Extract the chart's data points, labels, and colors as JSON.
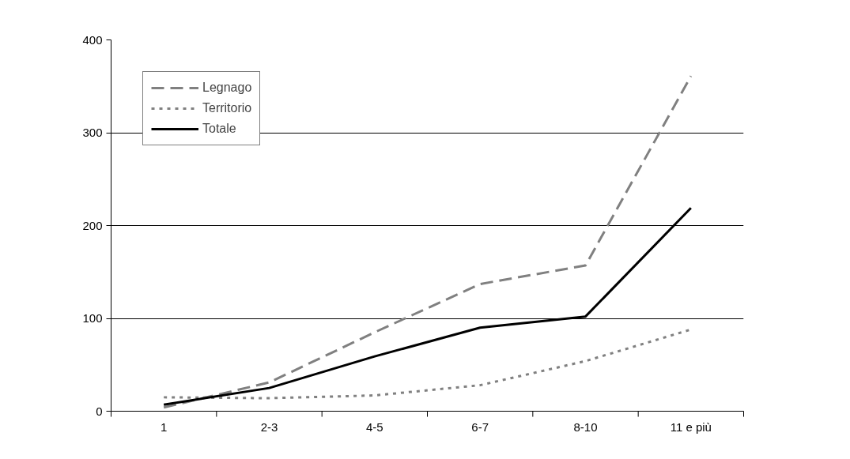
{
  "chart_data": {
    "type": "line",
    "categories": [
      "1",
      "2-3",
      "4-5",
      "6-7",
      "8-10",
      "11 e più"
    ],
    "series": [
      {
        "name": "Legnago",
        "color": "#808080",
        "line_style": "dashed",
        "values": [
          4,
          31,
          85,
          137,
          157,
          361
        ]
      },
      {
        "name": "Territorio",
        "color": "#808080",
        "line_style": "dotted",
        "values": [
          15,
          14,
          17,
          28,
          54,
          88
        ]
      },
      {
        "name": "Totale",
        "color": "#000000",
        "line_style": "solid",
        "values": [
          7,
          25,
          59,
          90,
          102,
          219
        ]
      }
    ],
    "ylim": [
      0,
      400
    ],
    "yticks": [
      0,
      100,
      200,
      300,
      400
    ],
    "grid": "y",
    "legend": "top left",
    "marker": "none"
  }
}
